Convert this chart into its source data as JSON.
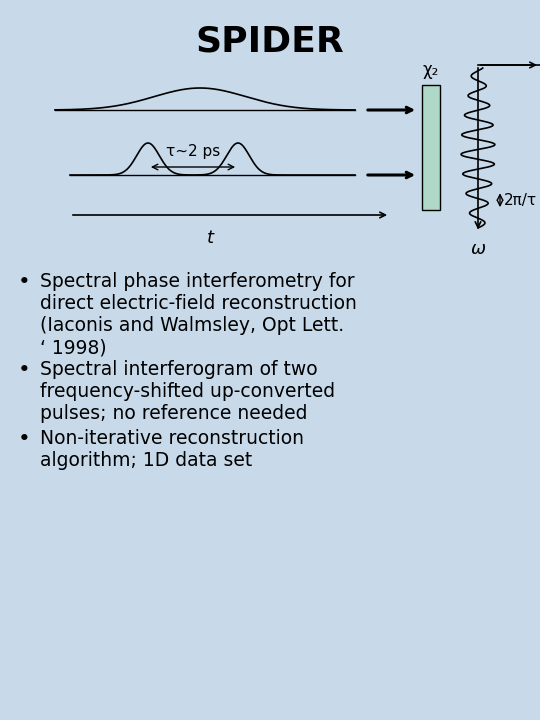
{
  "title": "SPIDER",
  "title_fontsize": 26,
  "title_fontweight": "bold",
  "bg_color": "#c8daea",
  "bullet_points": [
    "Spectral phase interferometry for\ndirect electric-field reconstruction\n(Iaconis and Walmsley, Opt Lett.\n‘ 1998)",
    "Spectral interferogram of two\nfrequency-shifted up-converted\npulses; no reference needed",
    "Non-iterative reconstruction\nalgorithm; 1D data set"
  ],
  "bullet_fontsize": 13.5,
  "tau_label": "τ~2 ps",
  "t_label": "t",
  "omega_label": "ω",
  "chi_label": "χ₂",
  "freq_shift_label": "2π/τ",
  "crystal_color": "#b0d8c8",
  "line_color": "#000000"
}
